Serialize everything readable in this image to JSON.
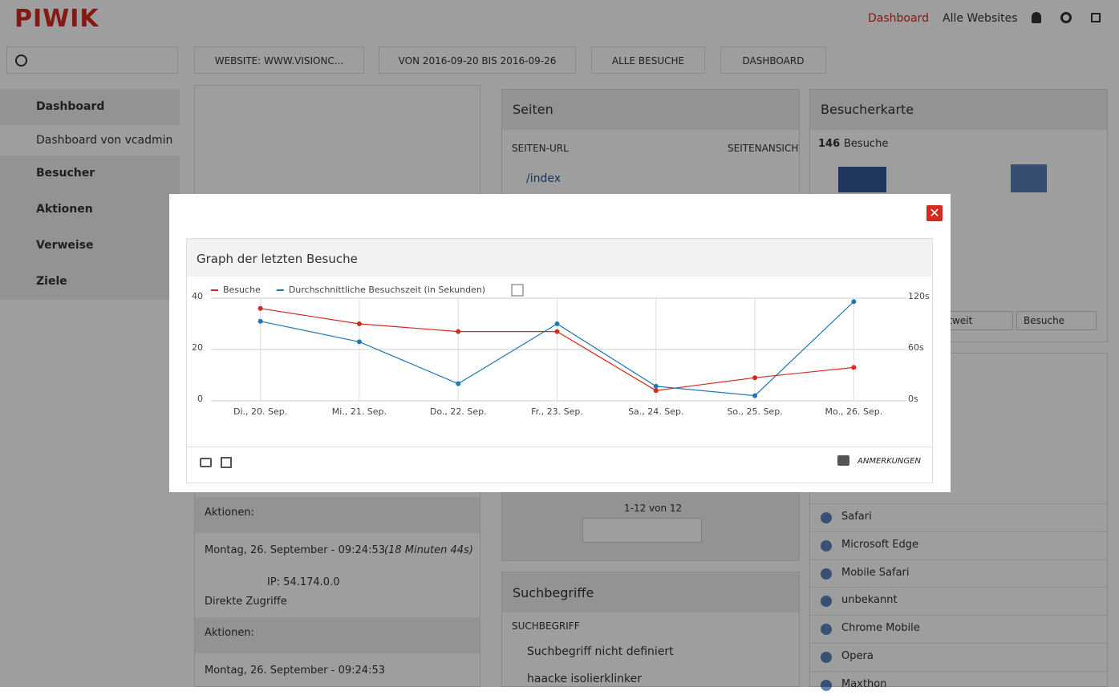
{
  "header": {
    "logo": "PIWIK",
    "nav": [
      "Dashboard",
      "Alle Websites"
    ]
  },
  "sidebar": {
    "items": [
      "Dashboard",
      "Dashboard von vcadmin",
      "Besucher",
      "Aktionen",
      "Verweise",
      "Ziele"
    ]
  },
  "toolbar": [
    "WEBSITE: WWW.VISIONC...",
    "VON 2016-09-20 BIS 2016-09-26",
    "ALLE BESUCHE",
    "DASHBOARD"
  ],
  "visitor_log": {
    "actions_label": "Aktionen:",
    "visit_time": "Montag, 26. September - 09:24:53",
    "visit_duration": "(18 Minuten 44s)",
    "ip": "IP: 54.174.0.0",
    "referrer": "Direkte Zugriffe",
    "actions_label_2": "Aktionen:",
    "visit_time_2": "Montag, 26. September - 09:24:53"
  },
  "pages_widget": {
    "title": "Seiten",
    "columns": [
      "SEITEN-URL",
      "SEITENANSICHT"
    ],
    "row": "/index",
    "pager": "1-12 von 12"
  },
  "search_widget": {
    "title": "Suchbegriffe",
    "column": "SUCHBEGRIFF",
    "rows": [
      "Suchbegriff nicht definiert",
      "haacke isolierklinker"
    ]
  },
  "map_widget": {
    "title": "Besucherkarte",
    "count": 146,
    "count_label": "Besuche",
    "selects": [
      "ltweit",
      "Besuche"
    ]
  },
  "browsers": [
    "Safari",
    "Microsoft Edge",
    "Mobile Safari",
    "unbekannt",
    "Chrome Mobile",
    "Opera",
    "Maxthon"
  ],
  "modal": {
    "title": "Graph der letzten Besuche",
    "annotations": "ANMERKUNGEN"
  },
  "chart_data": {
    "type": "line",
    "categories": [
      "Di., 20. Sep.",
      "Mi., 21. Sep.",
      "Do., 22. Sep.",
      "Fr., 23. Sep.",
      "Sa., 24. Sep.",
      "So., 25. Sep.",
      "Mo., 26. Sep."
    ],
    "series": [
      {
        "name": "Besuche",
        "color": "#d4291f",
        "values": [
          36,
          30,
          27,
          27,
          4,
          9,
          13
        ]
      },
      {
        "name": "Durchschnittliche Besuchszeit (in Sekunden)",
        "color": "#1f78b4",
        "axis": "y2",
        "values": [
          93,
          69,
          20,
          90,
          17,
          6,
          116
        ]
      }
    ],
    "ylim": [
      0,
      40
    ],
    "yticks": [
      0,
      20,
      40
    ],
    "y2lim": [
      0,
      120
    ],
    "y2ticks": [
      {
        "value": 0,
        "label": "0s"
      },
      {
        "value": 60,
        "label": "60s"
      },
      {
        "value": 120,
        "label": "120s"
      }
    ],
    "grid": true
  }
}
